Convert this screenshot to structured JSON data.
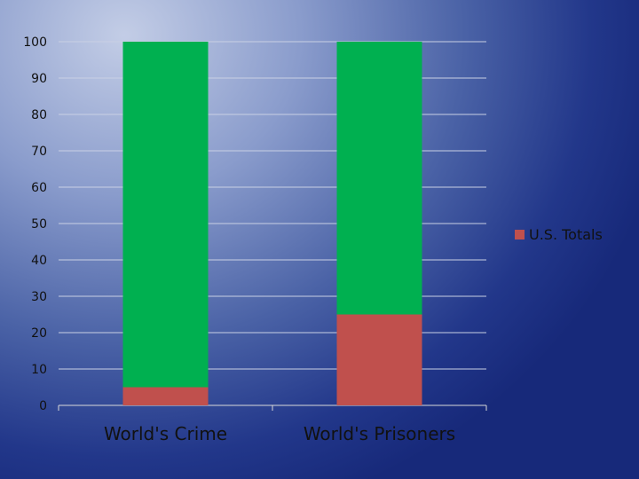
{
  "chart_data": {
    "type": "bar",
    "stacked": true,
    "categories": [
      "World's Crime",
      "World's Prisoners"
    ],
    "series": [
      {
        "name": "U.S. Totals",
        "values": [
          5,
          25
        ],
        "color": "#c0504d"
      },
      {
        "name": "",
        "values": [
          95,
          75
        ],
        "color": "#00b050"
      }
    ],
    "yticks": [
      "0",
      "10",
      "20",
      "30",
      "40",
      "50",
      "60",
      "70",
      "80",
      "90",
      "100"
    ],
    "ylim": [
      0,
      100
    ],
    "grid": true,
    "legend": {
      "position": "right",
      "label": "U.S. Totals",
      "color": "#c0504d"
    },
    "title": "",
    "xlabel": "",
    "ylabel": ""
  }
}
